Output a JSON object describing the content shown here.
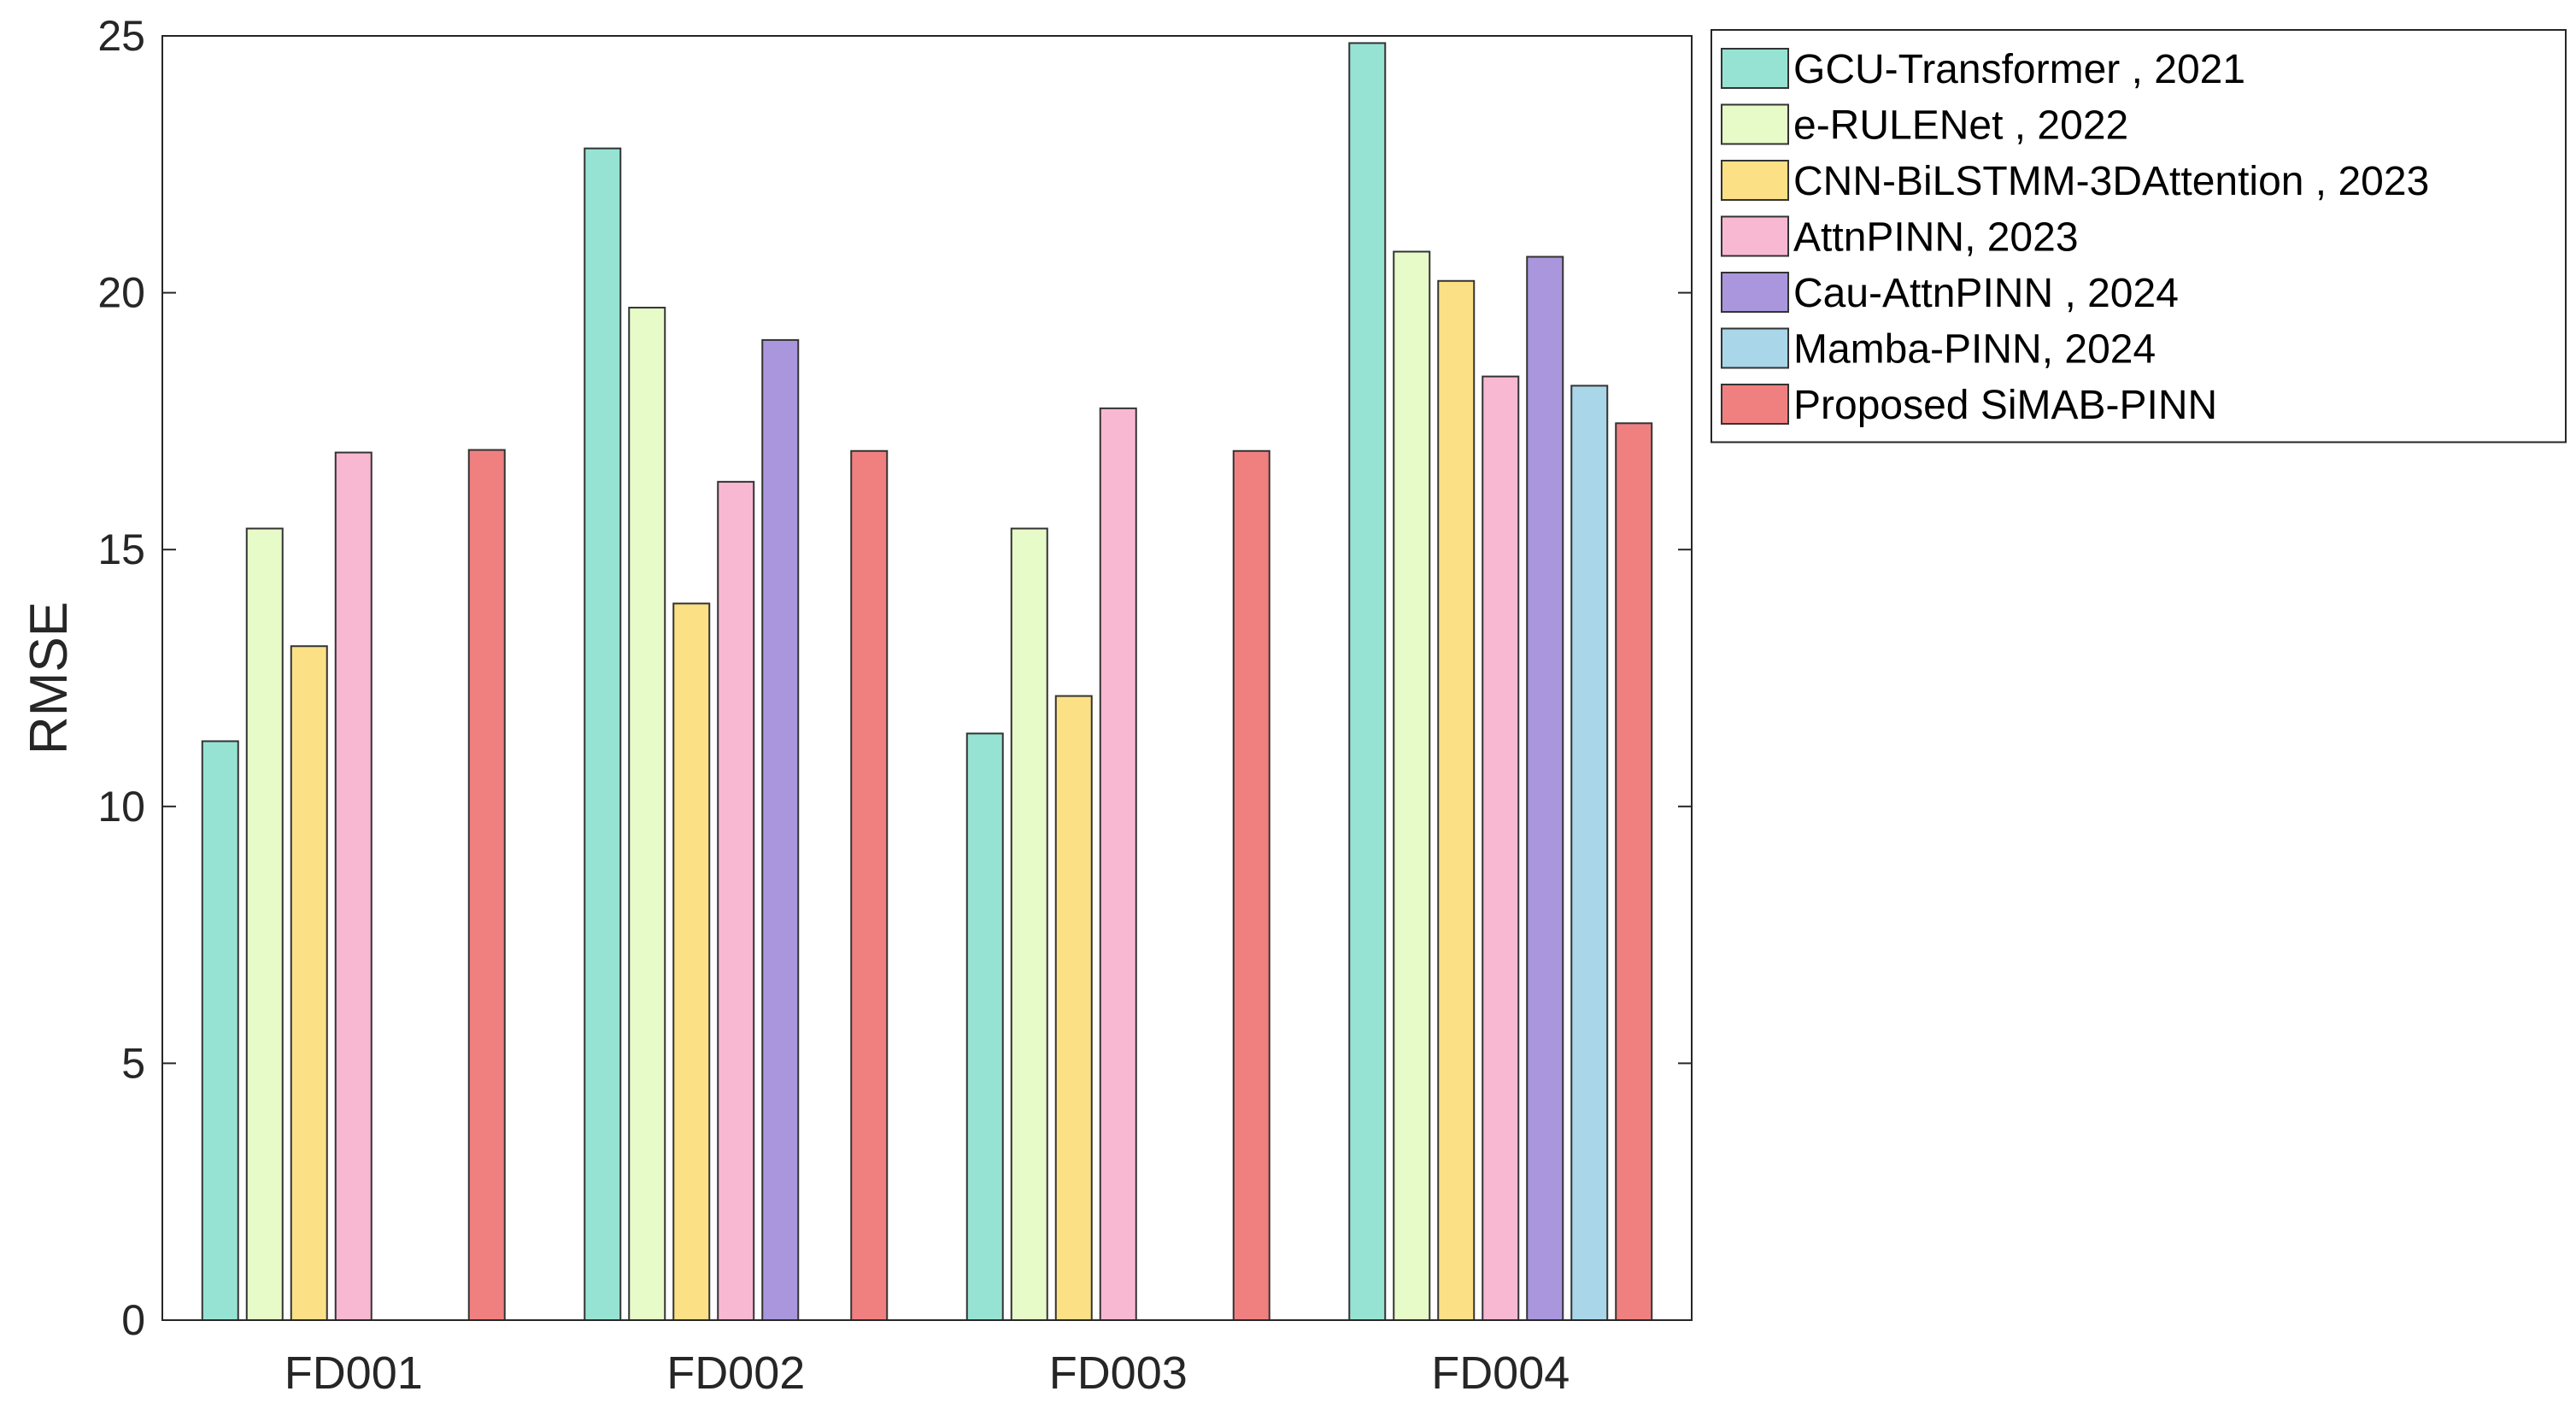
{
  "chart_data": {
    "type": "bar",
    "title": "",
    "xlabel": "",
    "ylabel": "RMSE",
    "ylim": [
      0,
      25
    ],
    "yticks": [
      0,
      5,
      10,
      15,
      20,
      25
    ],
    "grid": false,
    "legend_position": "outside-top-right",
    "categories": [
      "FD001",
      "FD002",
      "FD003",
      "FD004"
    ],
    "series": [
      {
        "name": "GCU-Transformer , 2021",
        "color": "#96e3d3",
        "values": [
          11.27,
          22.81,
          11.42,
          24.86
        ]
      },
      {
        "name": "e-RULENet , 2022",
        "color": "#e7fbc9",
        "values": [
          15.41,
          19.71,
          15.41,
          20.8
        ]
      },
      {
        "name": "CNN-BiLSTMM-3DAttention , 2023",
        "color": "#fbe086",
        "values": [
          13.12,
          13.95,
          12.15,
          20.23
        ]
      },
      {
        "name": "AttnPINN, 2023",
        "color": "#f9b8d2",
        "values": [
          16.89,
          16.32,
          17.75,
          18.37
        ]
      },
      {
        "name": "Cau-AttnPINN , 2024",
        "color": "#aa96dc",
        "values": [
          null,
          19.08,
          null,
          20.7
        ]
      },
      {
        "name": "Mamba-PINN, 2024",
        "color": "#a9d6e8",
        "values": [
          null,
          null,
          null,
          18.19
        ]
      },
      {
        "name": "Proposed SiMAB-PINN",
        "color": "#f08080",
        "values": [
          16.94,
          16.92,
          16.92,
          17.46
        ]
      }
    ]
  }
}
